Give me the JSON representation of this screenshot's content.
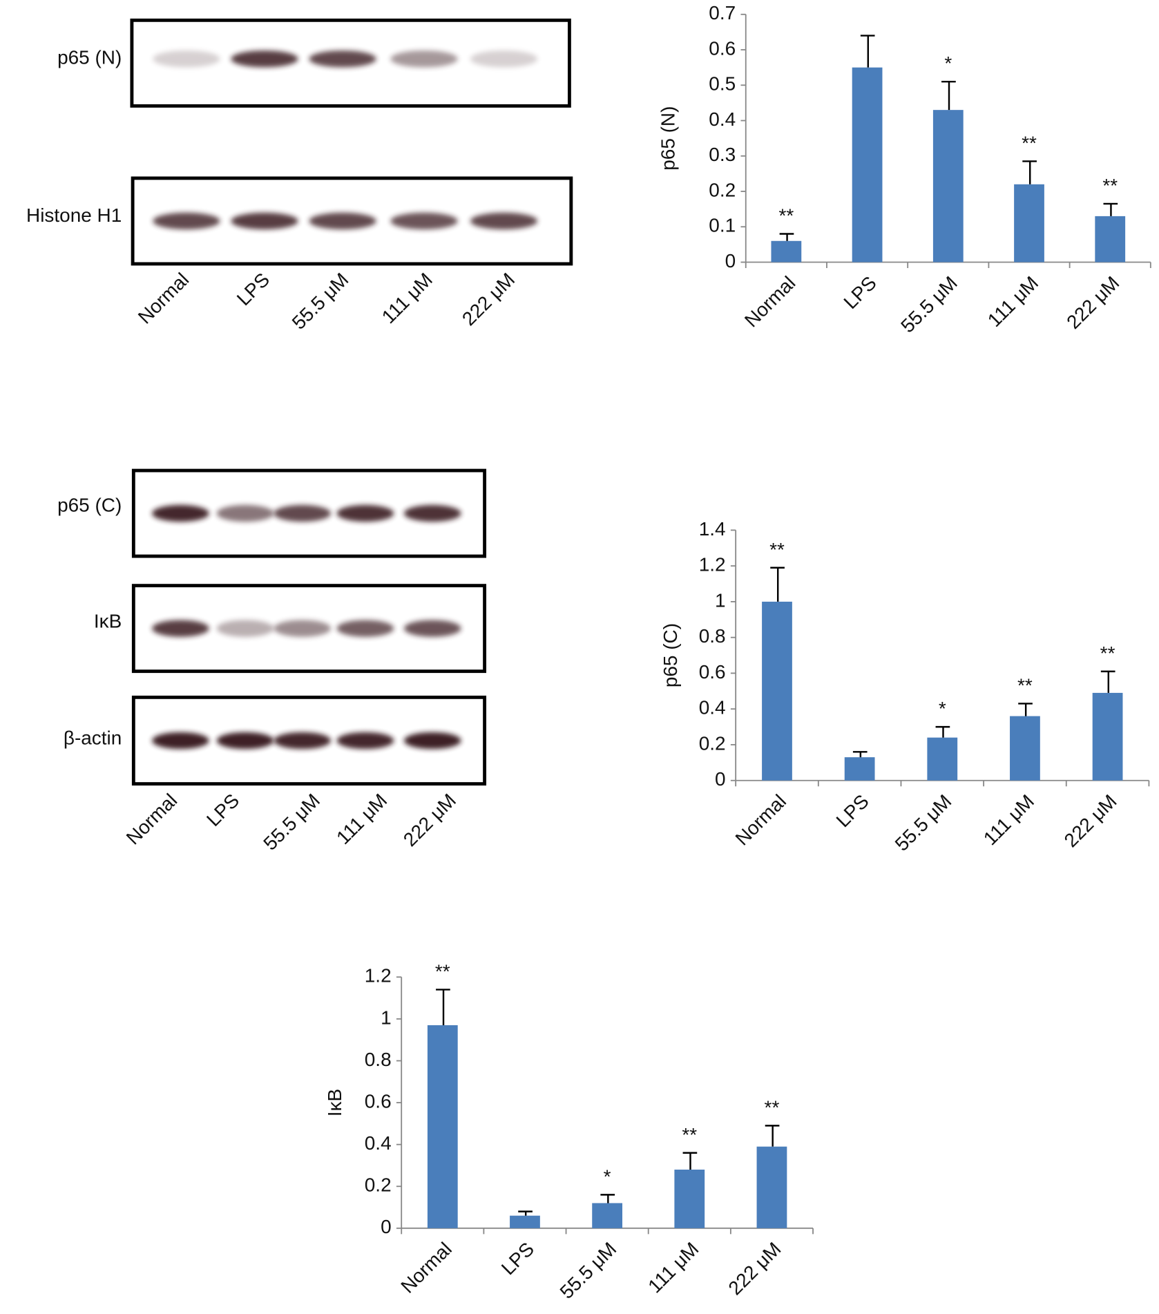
{
  "blots": [
    {
      "labels": [
        "p65 (N)",
        "Histone H1"
      ],
      "lanes": [
        "Normal",
        "LPS",
        "55.5 μM",
        "111 μM",
        "222 μM"
      ]
    },
    {
      "labels": [
        "p65 (C)",
        "IκB",
        "β-actin"
      ],
      "lanes": [
        "Normal",
        "LPS",
        "55.5 μM",
        "111 μM",
        "222 μM"
      ]
    }
  ],
  "chart_data": [
    {
      "type": "bar",
      "y_label": "p65 (N)",
      "color": "#4a7ebb",
      "categories": [
        "Normal",
        "LPS",
        "55.5 μM",
        "111 μM",
        "222 μM"
      ],
      "values": [
        0.06,
        0.55,
        0.43,
        0.22,
        0.13
      ],
      "errors": [
        0.02,
        0.09,
        0.08,
        0.065,
        0.035
      ],
      "annotations": [
        "**",
        null,
        "*",
        "**",
        "**"
      ],
      "ylim": [
        0,
        0.7
      ],
      "yticks": [
        0,
        0.1,
        0.2,
        0.3,
        0.4,
        0.5,
        0.6,
        0.7
      ]
    },
    {
      "type": "bar",
      "y_label": "p65 (C)",
      "color": "#4a7ebb",
      "categories": [
        "Normal",
        "LPS",
        "55.5 μM",
        "111 μM",
        "222 μM"
      ],
      "values": [
        1.0,
        0.13,
        0.24,
        0.36,
        0.49
      ],
      "errors": [
        0.19,
        0.03,
        0.06,
        0.07,
        0.12
      ],
      "annotations": [
        "**",
        null,
        "*",
        "**",
        "**"
      ],
      "ylim": [
        0,
        1.4
      ],
      "yticks": [
        0,
        0.2,
        0.4,
        0.6,
        0.8,
        1,
        1.2,
        1.4
      ]
    },
    {
      "type": "bar",
      "y_label": "IκB",
      "color": "#4a7ebb",
      "categories": [
        "Normal",
        "LPS",
        "55.5 μM",
        "111 μM",
        "222 μM"
      ],
      "values": [
        0.97,
        0.06,
        0.12,
        0.28,
        0.39
      ],
      "errors": [
        0.17,
        0.02,
        0.04,
        0.08,
        0.1
      ],
      "annotations": [
        "**",
        null,
        "*",
        "**",
        "**"
      ],
      "ylim": [
        0,
        1.2
      ],
      "yticks": [
        0,
        0.2,
        0.4,
        0.6,
        0.8,
        1,
        1.2
      ]
    }
  ]
}
